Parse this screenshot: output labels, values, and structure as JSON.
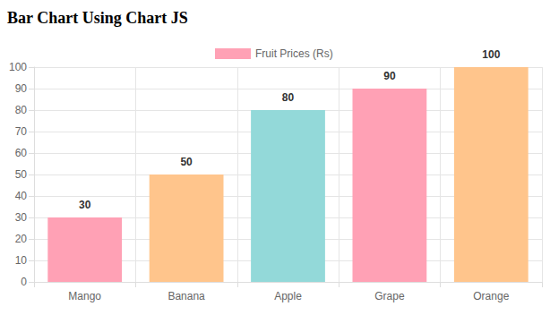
{
  "chart_data": {
    "type": "bar",
    "title": "Bar Chart Using Chart JS",
    "categories": [
      "Mango",
      "Banana",
      "Apple",
      "Grape",
      "Orange"
    ],
    "series": [
      {
        "name": "Fruit Prices (Rs)",
        "values": [
          30,
          50,
          80,
          90,
          100
        ],
        "colors": [
          "#ffa1b5",
          "#ffc58c",
          "#93d9d9",
          "#ffa1b5",
          "#ffc58c"
        ]
      }
    ],
    "ylim": [
      0,
      100
    ],
    "yticks": [
      0,
      10,
      20,
      30,
      40,
      50,
      60,
      70,
      80,
      90,
      100
    ],
    "grid": true,
    "legend": "top",
    "data_labels": true
  }
}
